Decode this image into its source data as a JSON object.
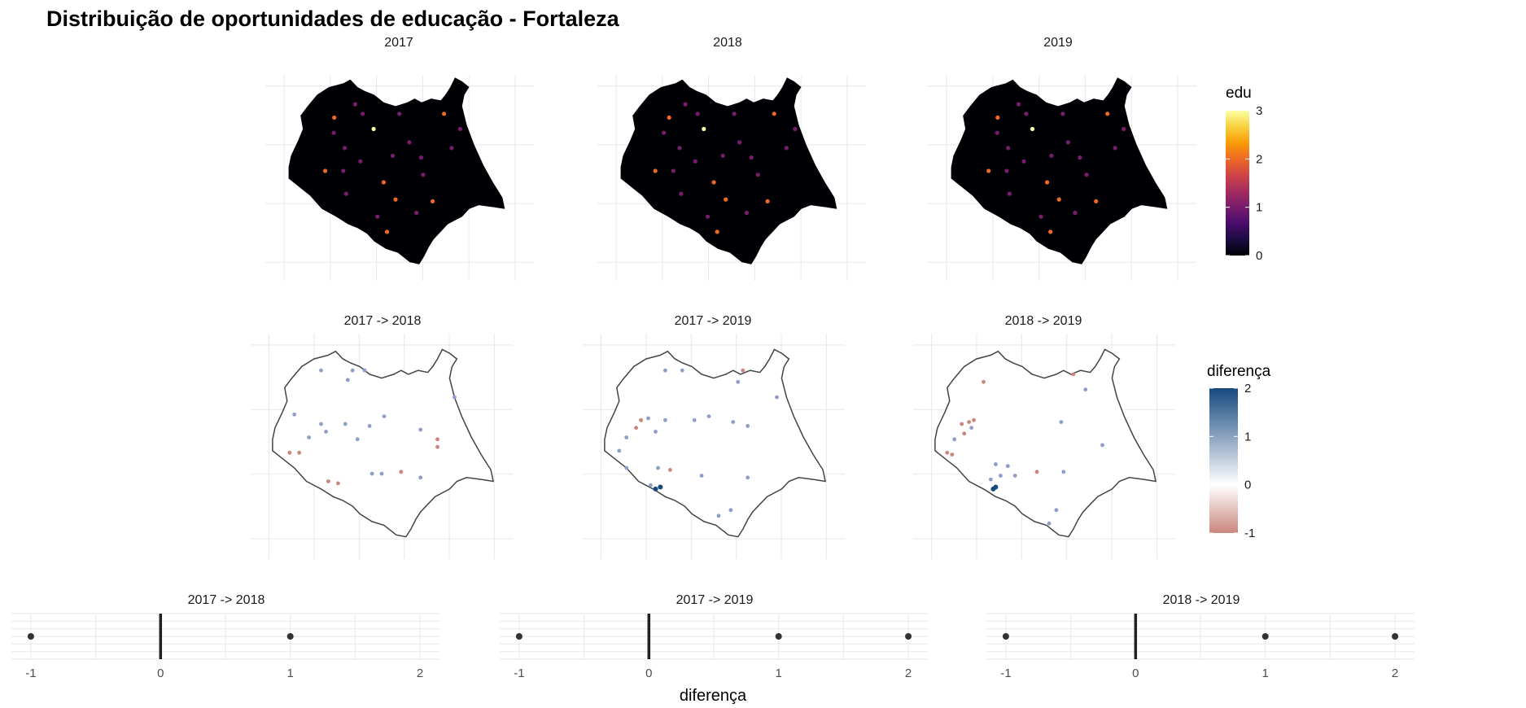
{
  "title": "Distribuição de oportunidades de educação - Fortaleza",
  "colors": {
    "grid": "#ebebeb",
    "outline": "#444444",
    "inferno": [
      "#000004",
      "#1b0c41",
      "#4a0c6b",
      "#781c6d",
      "#a52c60",
      "#cf4446",
      "#ed6925",
      "#fb9b06",
      "#f7d13d",
      "#fcffa4"
    ],
    "diverge_low": "#c9877c",
    "diverge_mid": "#ffffff",
    "diverge_high": "#16487f"
  },
  "chart_data": [
    {
      "type": "heatmap",
      "description_key": "edu_maps",
      "panels": [
        "2017",
        "2018",
        "2019"
      ],
      "legend": {
        "title": "edu",
        "ticks": [
          "0",
          "1",
          "2",
          "3"
        ],
        "range": [
          0,
          3
        ],
        "placement": "right"
      },
      "points": [
        {
          "x": 0.25,
          "y": 0.22,
          "v": 2
        },
        {
          "x": 0.33,
          "y": 0.15,
          "v": 1
        },
        {
          "x": 0.4,
          "y": 0.28,
          "v": 3
        },
        {
          "x": 0.29,
          "y": 0.38,
          "v": 1
        },
        {
          "x": 0.2,
          "y": 0.5,
          "v": 2
        },
        {
          "x": 0.36,
          "y": 0.45,
          "v": 1
        },
        {
          "x": 0.45,
          "y": 0.56,
          "v": 2
        },
        {
          "x": 0.55,
          "y": 0.35,
          "v": 1
        },
        {
          "x": 0.62,
          "y": 0.52,
          "v": 1
        },
        {
          "x": 0.7,
          "y": 0.2,
          "v": 2
        },
        {
          "x": 0.78,
          "y": 0.28,
          "v": 1
        },
        {
          "x": 0.5,
          "y": 0.65,
          "v": 2
        },
        {
          "x": 0.58,
          "y": 0.72,
          "v": 1
        },
        {
          "x": 0.66,
          "y": 0.66,
          "v": 2
        },
        {
          "x": 0.42,
          "y": 0.74,
          "v": 1
        },
        {
          "x": 0.3,
          "y": 0.62,
          "v": 1
        },
        {
          "x": 0.24,
          "y": 0.3,
          "v": 1
        },
        {
          "x": 0.48,
          "y": 0.42,
          "v": 1
        },
        {
          "x": 0.52,
          "y": 0.2,
          "v": 1
        },
        {
          "x": 0.46,
          "y": 0.82,
          "v": 2
        },
        {
          "x": 0.37,
          "y": 0.2,
          "v": 1
        },
        {
          "x": 0.28,
          "y": 0.5,
          "v": 1
        },
        {
          "x": 0.6,
          "y": 0.43,
          "v": 1
        },
        {
          "x": 0.74,
          "y": 0.38,
          "v": 1
        }
      ],
      "x_axis": {
        "ticks": [
          "",
          "",
          "",
          "",
          "",
          ""
        ]
      },
      "y_axis": {
        "ticks": [
          "",
          "",
          "",
          ""
        ]
      }
    },
    {
      "type": "heatmap",
      "description_key": "diff_maps",
      "panels": [
        "2017 -> 2018",
        "2017 -> 2019",
        "2018 -> 2019"
      ],
      "legend": {
        "title": "diferença",
        "ticks": [
          "-1",
          "0",
          "1",
          "2"
        ],
        "range": [
          -1,
          2
        ],
        "placement": "right"
      },
      "panel_points": [
        [
          {
            "x": 0.25,
            "y": 0.12,
            "v": 1
          },
          {
            "x": 0.38,
            "y": 0.12,
            "v": 1
          },
          {
            "x": 0.36,
            "y": 0.17,
            "v": 1
          },
          {
            "x": 0.43,
            "y": 0.12,
            "v": 1
          },
          {
            "x": 0.8,
            "y": 0.26,
            "v": 1
          },
          {
            "x": 0.14,
            "y": 0.35,
            "v": 1
          },
          {
            "x": 0.25,
            "y": 0.4,
            "v": 1
          },
          {
            "x": 0.27,
            "y": 0.44,
            "v": 1
          },
          {
            "x": 0.2,
            "y": 0.47,
            "v": 1
          },
          {
            "x": 0.12,
            "y": 0.55,
            "v": -1
          },
          {
            "x": 0.16,
            "y": 0.55,
            "v": -1
          },
          {
            "x": 0.35,
            "y": 0.4,
            "v": 1
          },
          {
            "x": 0.45,
            "y": 0.41,
            "v": 1
          },
          {
            "x": 0.51,
            "y": 0.36,
            "v": 1
          },
          {
            "x": 0.66,
            "y": 0.43,
            "v": 1
          },
          {
            "x": 0.4,
            "y": 0.48,
            "v": 1
          },
          {
            "x": 0.73,
            "y": 0.52,
            "v": -1
          },
          {
            "x": 0.73,
            "y": 0.48,
            "v": -1
          },
          {
            "x": 0.28,
            "y": 0.7,
            "v": -1
          },
          {
            "x": 0.32,
            "y": 0.71,
            "v": -1
          },
          {
            "x": 0.46,
            "y": 0.66,
            "v": 1
          },
          {
            "x": 0.5,
            "y": 0.66,
            "v": 1
          },
          {
            "x": 0.58,
            "y": 0.65,
            "v": -1
          },
          {
            "x": 0.66,
            "y": 0.68,
            "v": 1
          }
        ],
        [
          {
            "x": 0.3,
            "y": 0.12,
            "v": 1
          },
          {
            "x": 0.37,
            "y": 0.12,
            "v": 1
          },
          {
            "x": 0.62,
            "y": 0.12,
            "v": -1
          },
          {
            "x": 0.6,
            "y": 0.18,
            "v": 1
          },
          {
            "x": 0.76,
            "y": 0.26,
            "v": 1
          },
          {
            "x": 0.2,
            "y": 0.38,
            "v": -1
          },
          {
            "x": 0.23,
            "y": 0.37,
            "v": 1
          },
          {
            "x": 0.18,
            "y": 0.42,
            "v": -1
          },
          {
            "x": 0.14,
            "y": 0.47,
            "v": 1
          },
          {
            "x": 0.26,
            "y": 0.44,
            "v": 1
          },
          {
            "x": 0.3,
            "y": 0.38,
            "v": 1
          },
          {
            "x": 0.42,
            "y": 0.38,
            "v": 1
          },
          {
            "x": 0.48,
            "y": 0.36,
            "v": 1
          },
          {
            "x": 0.58,
            "y": 0.39,
            "v": 1
          },
          {
            "x": 0.64,
            "y": 0.41,
            "v": 1
          },
          {
            "x": 0.11,
            "y": 0.54,
            "v": 1
          },
          {
            "x": 0.14,
            "y": 0.63,
            "v": 1
          },
          {
            "x": 0.27,
            "y": 0.63,
            "v": 1
          },
          {
            "x": 0.32,
            "y": 0.64,
            "v": -1
          },
          {
            "x": 0.26,
            "y": 0.74,
            "v": 2
          },
          {
            "x": 0.28,
            "y": 0.73,
            "v": 2
          },
          {
            "x": 0.24,
            "y": 0.72,
            "v": 1
          },
          {
            "x": 0.45,
            "y": 0.67,
            "v": 1
          },
          {
            "x": 0.64,
            "y": 0.68,
            "v": 1
          },
          {
            "x": 0.57,
            "y": 0.85,
            "v": 1
          },
          {
            "x": 0.52,
            "y": 0.88,
            "v": 1
          }
        ],
        [
          {
            "x": 0.25,
            "y": 0.18,
            "v": -1
          },
          {
            "x": 0.62,
            "y": 0.14,
            "v": -1
          },
          {
            "x": 0.67,
            "y": 0.22,
            "v": 1
          },
          {
            "x": 0.16,
            "y": 0.4,
            "v": -1
          },
          {
            "x": 0.19,
            "y": 0.39,
            "v": -1
          },
          {
            "x": 0.21,
            "y": 0.38,
            "v": -1
          },
          {
            "x": 0.2,
            "y": 0.42,
            "v": 1
          },
          {
            "x": 0.17,
            "y": 0.45,
            "v": -1
          },
          {
            "x": 0.13,
            "y": 0.48,
            "v": 1
          },
          {
            "x": 0.1,
            "y": 0.55,
            "v": -1
          },
          {
            "x": 0.12,
            "y": 0.56,
            "v": -1
          },
          {
            "x": 0.57,
            "y": 0.39,
            "v": 1
          },
          {
            "x": 0.74,
            "y": 0.51,
            "v": 1
          },
          {
            "x": 0.3,
            "y": 0.61,
            "v": 1
          },
          {
            "x": 0.35,
            "y": 0.62,
            "v": 1
          },
          {
            "x": 0.32,
            "y": 0.67,
            "v": 1
          },
          {
            "x": 0.38,
            "y": 0.67,
            "v": 1
          },
          {
            "x": 0.28,
            "y": 0.69,
            "v": 1
          },
          {
            "x": 0.47,
            "y": 0.65,
            "v": -1
          },
          {
            "x": 0.58,
            "y": 0.65,
            "v": 1
          },
          {
            "x": 0.29,
            "y": 0.74,
            "v": 2
          },
          {
            "x": 0.3,
            "y": 0.73,
            "v": 2
          },
          {
            "x": 0.55,
            "y": 0.85,
            "v": 1
          },
          {
            "x": 0.52,
            "y": 0.92,
            "v": 1
          }
        ]
      ]
    },
    {
      "type": "scatter",
      "description_key": "diff_strips",
      "panels": [
        "2017 -> 2018",
        "2017 -> 2019",
        "2018 -> 2019"
      ],
      "xlabel": "diferença",
      "x_ticks": [
        "-1",
        "0",
        "1",
        "2"
      ],
      "xlim": [
        -1.15,
        2.15
      ],
      "panel_values": [
        [
          -1,
          1
        ],
        [
          -1,
          1,
          2
        ],
        [
          -1,
          1,
          2
        ]
      ],
      "reference_line_x": 0
    }
  ]
}
